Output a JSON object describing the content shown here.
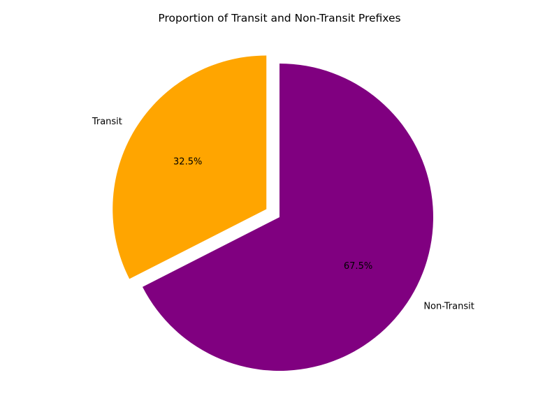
{
  "chart_data": {
    "type": "pie",
    "title": "Proportion of Transit and Non-Transit Prefixes",
    "slices": [
      {
        "label": "Transit",
        "value": 32.5,
        "pct_label": "32.5%",
        "color": "#ffa500",
        "exploded": true
      },
      {
        "label": "Non-Transit",
        "value": 67.5,
        "pct_label": "67.5%",
        "color": "#800080",
        "exploded": false
      }
    ],
    "start_angle": "90 degrees (top), counter-clockwise"
  }
}
